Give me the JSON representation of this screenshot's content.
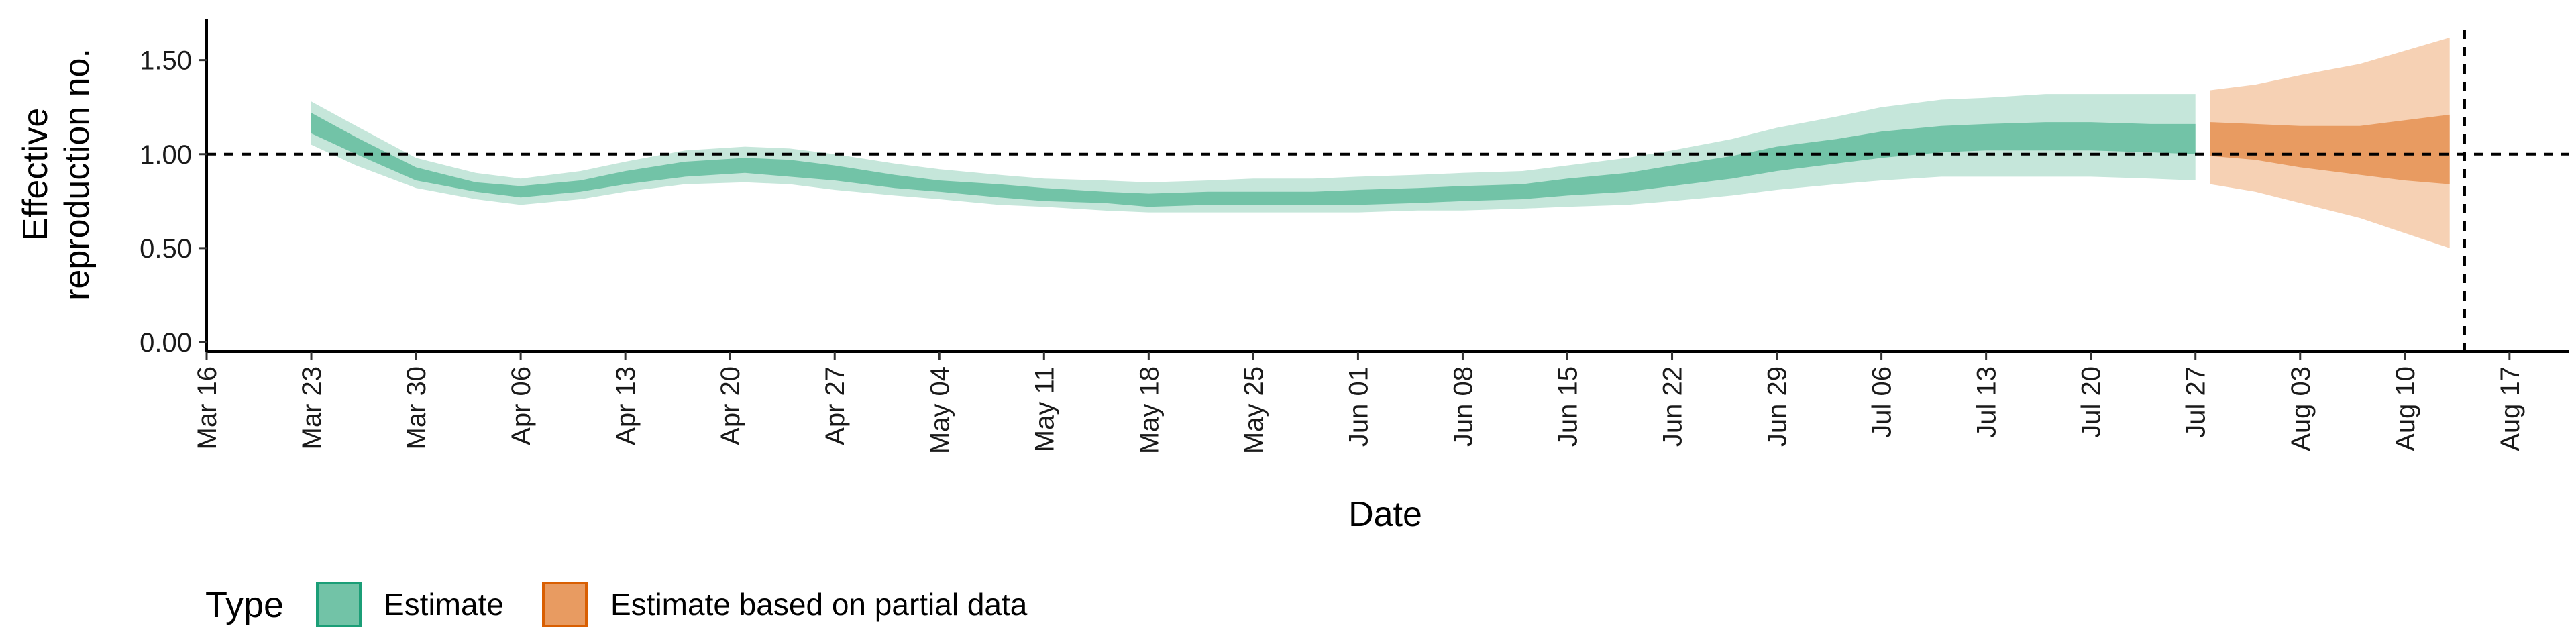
{
  "chart_data": {
    "type": "area",
    "title": "",
    "xlabel": "Date",
    "ylabel_lines": [
      "Effective",
      "reproduction no."
    ],
    "ylim": [
      -0.05,
      1.72
    ],
    "y_ticks": [
      {
        "value": 0.0,
        "label": "0.00"
      },
      {
        "value": 0.5,
        "label": "0.50"
      },
      {
        "value": 1.0,
        "label": "1.00"
      },
      {
        "value": 1.5,
        "label": "1.50"
      }
    ],
    "xlim": [
      "2020-03-16",
      "2020-08-21"
    ],
    "x_ticks": [
      {
        "date": "2020-03-16",
        "label": "Mar 16"
      },
      {
        "date": "2020-03-23",
        "label": "Mar 23"
      },
      {
        "date": "2020-03-30",
        "label": "Mar 30"
      },
      {
        "date": "2020-04-06",
        "label": "Apr 06"
      },
      {
        "date": "2020-04-13",
        "label": "Apr 13"
      },
      {
        "date": "2020-04-20",
        "label": "Apr 20"
      },
      {
        "date": "2020-04-27",
        "label": "Apr 27"
      },
      {
        "date": "2020-05-04",
        "label": "May 04"
      },
      {
        "date": "2020-05-11",
        "label": "May 11"
      },
      {
        "date": "2020-05-18",
        "label": "May 18"
      },
      {
        "date": "2020-05-25",
        "label": "May 25"
      },
      {
        "date": "2020-06-01",
        "label": "Jun 01"
      },
      {
        "date": "2020-06-08",
        "label": "Jun 08"
      },
      {
        "date": "2020-06-15",
        "label": "Jun 15"
      },
      {
        "date": "2020-06-22",
        "label": "Jun 22"
      },
      {
        "date": "2020-06-29",
        "label": "Jun 29"
      },
      {
        "date": "2020-07-06",
        "label": "Jul 06"
      },
      {
        "date": "2020-07-13",
        "label": "Jul 13"
      },
      {
        "date": "2020-07-20",
        "label": "Jul 20"
      },
      {
        "date": "2020-07-27",
        "label": "Jul 27"
      },
      {
        "date": "2020-08-03",
        "label": "Aug 03"
      },
      {
        "date": "2020-08-10",
        "label": "Aug 10"
      },
      {
        "date": "2020-08-17",
        "label": "Aug 17"
      }
    ],
    "reference_lines": {
      "horizontal_y": 1.0,
      "vertical_date": "2020-08-14"
    },
    "grid": false,
    "legend": {
      "title": "Type",
      "position": "bottom-left",
      "entries": [
        {
          "label": "Estimate",
          "fill": "#72C3A7",
          "border": "#1B9E77"
        },
        {
          "label": "Estimate based on partial data",
          "fill": "#E89B61",
          "border": "#D95F02"
        }
      ]
    },
    "series": [
      {
        "name": "Estimate",
        "inner_color": "#72C3A7",
        "outer_color": "#C5E6DA",
        "points": [
          {
            "x": "2020-03-23",
            "lo90": 1.05,
            "lo50": 1.11,
            "hi50": 1.22,
            "hi90": 1.28
          },
          {
            "x": "2020-03-26",
            "lo90": 0.94,
            "lo50": 1.0,
            "hi50": 1.09,
            "hi90": 1.15
          },
          {
            "x": "2020-03-30",
            "lo90": 0.82,
            "lo50": 0.86,
            "hi50": 0.93,
            "hi90": 0.98
          },
          {
            "x": "2020-04-03",
            "lo90": 0.76,
            "lo50": 0.8,
            "hi50": 0.85,
            "hi90": 0.9
          },
          {
            "x": "2020-04-06",
            "lo90": 0.73,
            "lo50": 0.77,
            "hi50": 0.83,
            "hi90": 0.87
          },
          {
            "x": "2020-04-10",
            "lo90": 0.76,
            "lo50": 0.8,
            "hi50": 0.86,
            "hi90": 0.91
          },
          {
            "x": "2020-04-13",
            "lo90": 0.8,
            "lo50": 0.84,
            "hi50": 0.91,
            "hi90": 0.96
          },
          {
            "x": "2020-04-17",
            "lo90": 0.84,
            "lo50": 0.88,
            "hi50": 0.96,
            "hi90": 1.02
          },
          {
            "x": "2020-04-21",
            "lo90": 0.85,
            "lo50": 0.9,
            "hi50": 0.98,
            "hi90": 1.04
          },
          {
            "x": "2020-04-24",
            "lo90": 0.84,
            "lo50": 0.88,
            "hi50": 0.97,
            "hi90": 1.03
          },
          {
            "x": "2020-04-27",
            "lo90": 0.81,
            "lo50": 0.86,
            "hi50": 0.94,
            "hi90": 1.0
          },
          {
            "x": "2020-05-01",
            "lo90": 0.78,
            "lo50": 0.82,
            "hi50": 0.89,
            "hi90": 0.95
          },
          {
            "x": "2020-05-04",
            "lo90": 0.76,
            "lo50": 0.8,
            "hi50": 0.86,
            "hi90": 0.92
          },
          {
            "x": "2020-05-08",
            "lo90": 0.73,
            "lo50": 0.77,
            "hi50": 0.84,
            "hi90": 0.89
          },
          {
            "x": "2020-05-11",
            "lo90": 0.72,
            "lo50": 0.75,
            "hi50": 0.82,
            "hi90": 0.87
          },
          {
            "x": "2020-05-15",
            "lo90": 0.7,
            "lo50": 0.74,
            "hi50": 0.8,
            "hi90": 0.86
          },
          {
            "x": "2020-05-18",
            "lo90": 0.69,
            "lo50": 0.72,
            "hi50": 0.79,
            "hi90": 0.85
          },
          {
            "x": "2020-05-22",
            "lo90": 0.69,
            "lo50": 0.73,
            "hi50": 0.8,
            "hi90": 0.86
          },
          {
            "x": "2020-05-25",
            "lo90": 0.69,
            "lo50": 0.73,
            "hi50": 0.8,
            "hi90": 0.87
          },
          {
            "x": "2020-05-29",
            "lo90": 0.69,
            "lo50": 0.73,
            "hi50": 0.8,
            "hi90": 0.87
          },
          {
            "x": "2020-06-01",
            "lo90": 0.69,
            "lo50": 0.73,
            "hi50": 0.81,
            "hi90": 0.88
          },
          {
            "x": "2020-06-05",
            "lo90": 0.7,
            "lo50": 0.74,
            "hi50": 0.82,
            "hi90": 0.89
          },
          {
            "x": "2020-06-08",
            "lo90": 0.7,
            "lo50": 0.75,
            "hi50": 0.83,
            "hi90": 0.9
          },
          {
            "x": "2020-06-12",
            "lo90": 0.71,
            "lo50": 0.76,
            "hi50": 0.84,
            "hi90": 0.91
          },
          {
            "x": "2020-06-15",
            "lo90": 0.72,
            "lo50": 0.78,
            "hi50": 0.87,
            "hi90": 0.94
          },
          {
            "x": "2020-06-19",
            "lo90": 0.73,
            "lo50": 0.8,
            "hi50": 0.9,
            "hi90": 0.98
          },
          {
            "x": "2020-06-22",
            "lo90": 0.75,
            "lo50": 0.83,
            "hi50": 0.94,
            "hi90": 1.02
          },
          {
            "x": "2020-06-26",
            "lo90": 0.78,
            "lo50": 0.87,
            "hi50": 0.99,
            "hi90": 1.08
          },
          {
            "x": "2020-06-29",
            "lo90": 0.81,
            "lo50": 0.91,
            "hi50": 1.04,
            "hi90": 1.14
          },
          {
            "x": "2020-07-03",
            "lo90": 0.84,
            "lo50": 0.95,
            "hi50": 1.08,
            "hi90": 1.2
          },
          {
            "x": "2020-07-06",
            "lo90": 0.86,
            "lo50": 0.98,
            "hi50": 1.12,
            "hi90": 1.25
          },
          {
            "x": "2020-07-10",
            "lo90": 0.88,
            "lo50": 1.01,
            "hi50": 1.15,
            "hi90": 1.29
          },
          {
            "x": "2020-07-13",
            "lo90": 0.88,
            "lo50": 1.02,
            "hi50": 1.16,
            "hi90": 1.3
          },
          {
            "x": "2020-07-17",
            "lo90": 0.88,
            "lo50": 1.02,
            "hi50": 1.17,
            "hi90": 1.32
          },
          {
            "x": "2020-07-20",
            "lo90": 0.88,
            "lo50": 1.02,
            "hi50": 1.17,
            "hi90": 1.32
          },
          {
            "x": "2020-07-24",
            "lo90": 0.87,
            "lo50": 1.01,
            "hi50": 1.16,
            "hi90": 1.32
          },
          {
            "x": "2020-07-27",
            "lo90": 0.86,
            "lo50": 1.0,
            "hi50": 1.16,
            "hi90": 1.32
          }
        ]
      },
      {
        "name": "Estimate based on partial data",
        "inner_color": "#E89B61",
        "outer_color": "#F6D1B4",
        "points": [
          {
            "x": "2020-07-28",
            "lo90": 0.84,
            "lo50": 0.99,
            "hi50": 1.17,
            "hi90": 1.34
          },
          {
            "x": "2020-07-31",
            "lo90": 0.8,
            "lo50": 0.97,
            "hi50": 1.16,
            "hi90": 1.37
          },
          {
            "x": "2020-08-03",
            "lo90": 0.74,
            "lo50": 0.93,
            "hi50": 1.15,
            "hi90": 1.42
          },
          {
            "x": "2020-08-07",
            "lo90": 0.66,
            "lo50": 0.89,
            "hi50": 1.15,
            "hi90": 1.48
          },
          {
            "x": "2020-08-10",
            "lo90": 0.58,
            "lo50": 0.86,
            "hi50": 1.18,
            "hi90": 1.55
          },
          {
            "x": "2020-08-13",
            "lo90": 0.5,
            "lo50": 0.84,
            "hi50": 1.21,
            "hi90": 1.62
          }
        ]
      }
    ]
  }
}
